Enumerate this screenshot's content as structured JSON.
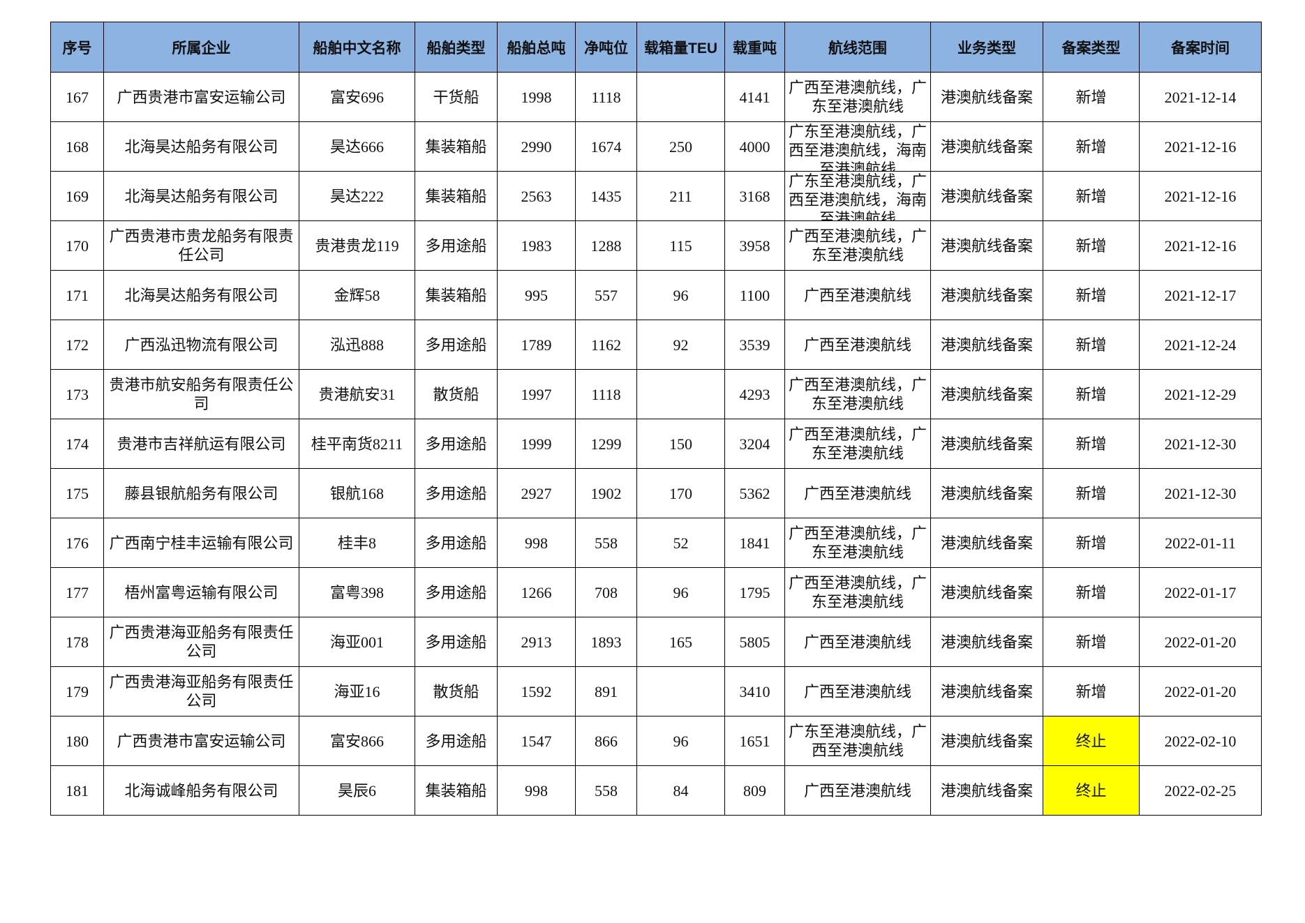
{
  "table": {
    "header": [
      "序号",
      "所属企业",
      "船舶中文名称",
      "船舶类型",
      "船舶总吨",
      "净吨位",
      "载箱量TEU",
      "载重吨",
      "航线范围",
      "业务类型",
      "备案类型",
      "备案时间"
    ],
    "rows": [
      [
        "167",
        "广西贵港市富安运输公司",
        "富安696",
        "干货船",
        "1998",
        "1118",
        null,
        "4141",
        "广西至港澳航线，广东至港澳航线",
        "港澳航线备案",
        "新增",
        "2021-12-14"
      ],
      [
        "168",
        "北海昊达船务有限公司",
        "昊达666",
        "集装箱船",
        "2990",
        "1674",
        "250",
        "4000",
        "广东至港澳航线，广西至港澳航线，海南至港澳航线",
        "港澳航线备案",
        "新增",
        "2021-12-16"
      ],
      [
        "169",
        "北海昊达船务有限公司",
        "昊达222",
        "集装箱船",
        "2563",
        "1435",
        "211",
        "3168",
        "广东至港澳航线，广西至港澳航线，海南至港澳航线",
        "港澳航线备案",
        "新增",
        "2021-12-16"
      ],
      [
        "170",
        "广西贵港市贵龙船务有限责任公司",
        "贵港贵龙119",
        "多用途船",
        "1983",
        "1288",
        "115",
        "3958",
        "广西至港澳航线，广东至港澳航线",
        "港澳航线备案",
        "新增",
        "2021-12-16"
      ],
      [
        "171",
        "北海昊达船务有限公司",
        "金辉58",
        "集装箱船",
        "995",
        "557",
        "96",
        "1100",
        "广西至港澳航线",
        "港澳航线备案",
        "新增",
        "2021-12-17"
      ],
      [
        "172",
        "广西泓迅物流有限公司",
        "泓迅888",
        "多用途船",
        "1789",
        "1162",
        "92",
        "3539",
        "广西至港澳航线",
        "港澳航线备案",
        "新增",
        "2021-12-24"
      ],
      [
        "173",
        "贵港市航安船务有限责任公司",
        "贵港航安31",
        "散货船",
        "1997",
        "1118",
        null,
        "4293",
        "广西至港澳航线，广东至港澳航线",
        "港澳航线备案",
        "新增",
        "2021-12-29"
      ],
      [
        "174",
        "贵港市吉祥航运有限公司",
        "桂平南货8211",
        "多用途船",
        "1999",
        "1299",
        "150",
        "3204",
        "广西至港澳航线，广东至港澳航线",
        "港澳航线备案",
        "新增",
        "2021-12-30"
      ],
      [
        "175",
        "藤县银航船务有限公司",
        "银航168",
        "多用途船",
        "2927",
        "1902",
        "170",
        "5362",
        "广西至港澳航线",
        "港澳航线备案",
        "新增",
        "2021-12-30"
      ],
      [
        "176",
        "广西南宁桂丰运输有限公司",
        "桂丰8",
        "多用途船",
        "998",
        "558",
        "52",
        "1841",
        "广西至港澳航线，广东至港澳航线",
        "港澳航线备案",
        "新增",
        "2022-01-11"
      ],
      [
        "177",
        "梧州富粤运输有限公司",
        "富粤398",
        "多用途船",
        "1266",
        "708",
        "96",
        "1795",
        "广西至港澳航线，广东至港澳航线",
        "港澳航线备案",
        "新增",
        "2022-01-17"
      ],
      [
        "178",
        "广西贵港海亚船务有限责任公司",
        "海亚001",
        "多用途船",
        "2913",
        "1893",
        "165",
        "5805",
        "广西至港澳航线",
        "港澳航线备案",
        "新增",
        "2022-01-20"
      ],
      [
        "179",
        "广西贵港海亚船务有限责任公司",
        "海亚16",
        "散货船",
        "1592",
        "891",
        null,
        "3410",
        "广西至港澳航线",
        "港澳航线备案",
        "新增",
        "2022-01-20"
      ],
      [
        "180",
        "广西贵港市富安运输公司",
        "富安866",
        "多用途船",
        "1547",
        "866",
        "96",
        "1651",
        "广东至港澳航线，广西至港澳航线",
        "港澳航线备案",
        "终止",
        "2022-02-10"
      ],
      [
        "181",
        "北海诚峰船务有限公司",
        "昊辰6",
        "集装箱船",
        "998",
        "558",
        "84",
        "809",
        "广西至港澳航线",
        "港澳航线备案",
        "终止",
        "2022-02-25"
      ]
    ]
  }
}
